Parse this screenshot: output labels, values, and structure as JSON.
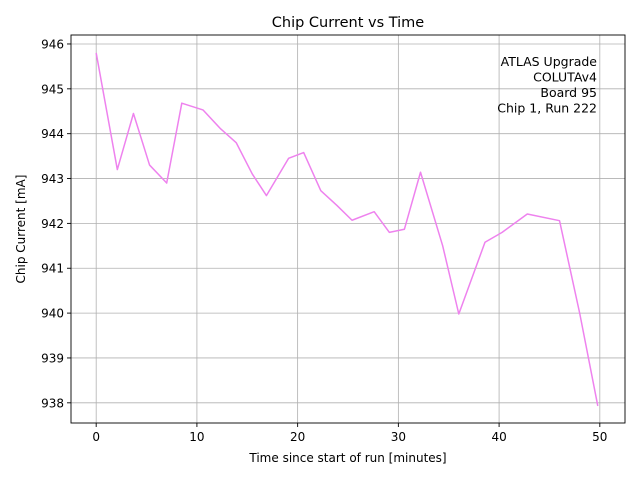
{
  "chart_data": {
    "type": "line",
    "title": "Chip Current vs Time",
    "xlabel": "Time since start of run [minutes]",
    "ylabel": "Chip Current [mA]",
    "xlim": [
      -2.5,
      52.5
    ],
    "ylim": [
      937.55,
      946.2
    ],
    "xticks": [
      0,
      10,
      20,
      30,
      40,
      50
    ],
    "yticks": [
      938,
      939,
      940,
      941,
      942,
      943,
      944,
      945,
      946
    ],
    "grid": true,
    "annotation": [
      "ATLAS Upgrade",
      "COLUTAv4",
      "Board 95",
      "Chip 1, Run 222"
    ],
    "annotation_placement": "top-right",
    "series": [
      {
        "color": "#ee82ee",
        "x": [
          0,
          2.1,
          3.7,
          5.3,
          7.0,
          8.5,
          10.6,
          12.3,
          13.9,
          15.5,
          16.9,
          19.1,
          20.6,
          22.3,
          23.9,
          25.4,
          27.6,
          29.1,
          30.6,
          32.2,
          34.4,
          36.0,
          38.6,
          40.3,
          42.8,
          46.0,
          48.0,
          49.8
        ],
        "y": [
          945.8,
          943.2,
          944.45,
          943.3,
          942.9,
          944.68,
          944.53,
          944.12,
          943.8,
          943.1,
          942.62,
          943.45,
          943.58,
          942.73,
          942.4,
          942.07,
          942.26,
          941.8,
          941.87,
          943.14,
          941.5,
          939.98,
          941.58,
          941.8,
          942.21,
          942.06,
          940.0,
          937.93
        ]
      }
    ]
  }
}
